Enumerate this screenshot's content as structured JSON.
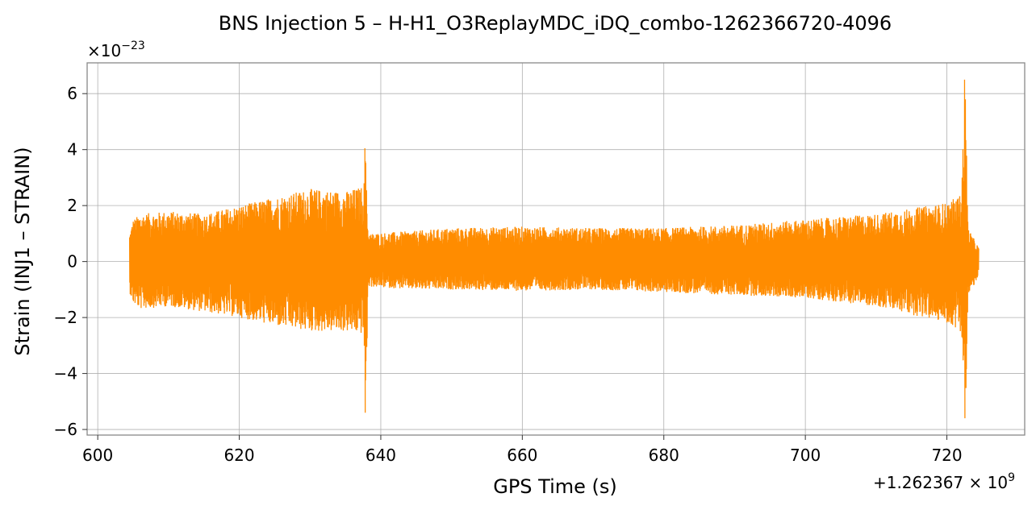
{
  "chart_data": {
    "type": "line",
    "title": "BNS Injection 5 – H-H1_O3ReplayMDC_iDQ_combo-1262366720-4096",
    "xlabel": "GPS Time (s)",
    "ylabel": "Strain (INJ1 – STRAIN)",
    "y_scale_label": "×10",
    "y_scale_exp": "−23",
    "x_offset_label": "+1.262367 × 10",
    "x_offset_exp": "9",
    "xlim": [
      598.5,
      731
    ],
    "ylim": [
      -6.2,
      7.1
    ],
    "xticks": [
      600,
      620,
      640,
      660,
      680,
      700,
      720
    ],
    "xtick_labels": [
      "600",
      "620",
      "640",
      "660",
      "680",
      "700",
      "720"
    ],
    "yticks": [
      -6,
      -4,
      -2,
      0,
      2,
      4,
      6
    ],
    "ytick_labels": [
      "−6",
      "−4",
      "−2",
      "0",
      "2",
      "4",
      "6"
    ],
    "grid": true,
    "series": [
      {
        "color": "#ff8c00",
        "envelope": {
          "x": [
            604.5,
            605,
            606,
            610,
            615,
            620,
            625,
            630,
            635,
            637.6,
            637.9,
            638.2,
            645,
            650,
            660,
            670,
            680,
            690,
            700,
            710,
            715,
            720,
            722,
            722.6,
            723,
            724.5
          ],
          "upper": [
            1.0,
            1.5,
            1.7,
            1.8,
            1.7,
            2.0,
            2.3,
            2.6,
            2.5,
            2.7,
            4.05,
            1.0,
            1.1,
            1.2,
            1.25,
            1.2,
            1.2,
            1.3,
            1.5,
            1.7,
            1.9,
            2.1,
            2.4,
            6.5,
            1.2,
            0.5
          ],
          "lower": [
            -1.1,
            -1.5,
            -1.7,
            -1.6,
            -1.8,
            -2.0,
            -2.3,
            -2.5,
            -2.5,
            -2.6,
            -5.4,
            -0.9,
            -1.0,
            -1.0,
            -1.05,
            -1.0,
            -1.1,
            -1.2,
            -1.3,
            -1.6,
            -1.9,
            -2.2,
            -2.5,
            -5.6,
            -1.3,
            -0.5
          ]
        }
      }
    ]
  }
}
